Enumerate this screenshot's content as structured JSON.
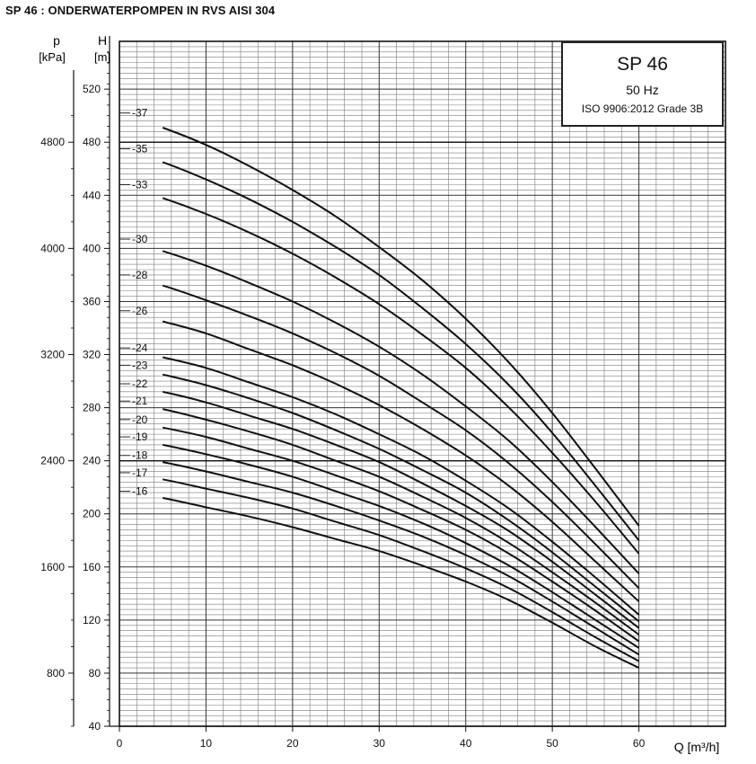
{
  "title": "SP 46 : ONDERWATERPOMPEN IN RVS AISI 304",
  "info_box": {
    "model": "SP 46",
    "frequency": "50 Hz",
    "standard": "ISO 9906:2012 Grade 3B"
  },
  "chart_data": {
    "type": "line",
    "xlabel": "Q [m³/h]",
    "ylabel_left_outer": {
      "symbol": "p",
      "unit": "[kPa]"
    },
    "ylabel_left_inner": {
      "symbol": "H",
      "unit": "[m]"
    },
    "xlim": [
      0,
      70
    ],
    "ylim": [
      40,
      556
    ],
    "x_ticks": [
      0,
      10,
      20,
      30,
      40,
      50,
      60
    ],
    "y_ticks_H": [
      40,
      80,
      120,
      160,
      200,
      240,
      280,
      320,
      360,
      400,
      440,
      480,
      520
    ],
    "y_ticks_p": [
      800,
      1600,
      2400,
      3200,
      4000,
      4800
    ],
    "grid": true,
    "x": [
      0,
      5,
      10,
      15,
      20,
      25,
      30,
      35,
      40,
      45,
      50,
      55,
      60
    ],
    "series": [
      {
        "name": "-16",
        "values": [
          217,
          212,
          205,
          198,
          190,
          181,
          172,
          161,
          149,
          135,
          118,
          100,
          84
        ]
      },
      {
        "name": "-17",
        "values": [
          231,
          226,
          219,
          212,
          204,
          194,
          184,
          172,
          159,
          144,
          126,
          107,
          89
        ]
      },
      {
        "name": "-18",
        "values": [
          244,
          239,
          232,
          224,
          216,
          206,
          195,
          183,
          169,
          153,
          134,
          114,
          94
        ]
      },
      {
        "name": "-19",
        "values": [
          258,
          252,
          245,
          237,
          228,
          217,
          206,
          193,
          178,
          161,
          141,
          120,
          99
        ]
      },
      {
        "name": "-20",
        "values": [
          271,
          265,
          258,
          249,
          240,
          229,
          217,
          203,
          188,
          170,
          149,
          127,
          104
        ]
      },
      {
        "name": "-21",
        "values": [
          285,
          279,
          271,
          262,
          252,
          240,
          228,
          213,
          197,
          178,
          156,
          133,
          109
        ]
      },
      {
        "name": "-22",
        "values": [
          298,
          292,
          284,
          274,
          264,
          252,
          239,
          223,
          206,
          187,
          164,
          139,
          114
        ]
      },
      {
        "name": "-23",
        "values": [
          312,
          305,
          297,
          287,
          276,
          263,
          249,
          233,
          216,
          195,
          171,
          145,
          119
        ]
      },
      {
        "name": "-24",
        "values": [
          325,
          318,
          310,
          299,
          288,
          275,
          260,
          244,
          225,
          204,
          179,
          152,
          124
        ]
      },
      {
        "name": "-26",
        "values": [
          353,
          345,
          336,
          324,
          312,
          298,
          282,
          264,
          244,
          221,
          194,
          164,
          134
        ]
      },
      {
        "name": "-28",
        "values": [
          380,
          372,
          361,
          349,
          336,
          321,
          304,
          284,
          263,
          238,
          209,
          177,
          144
        ]
      },
      {
        "name": "-30",
        "values": [
          407,
          398,
          387,
          374,
          360,
          344,
          326,
          305,
          281,
          255,
          224,
          190,
          155
        ]
      },
      {
        "name": "-33",
        "values": [
          448,
          438,
          426,
          412,
          396,
          378,
          358,
          335,
          310,
          280,
          246,
          209,
          170
        ]
      },
      {
        "name": "-35",
        "values": [
          475,
          465,
          452,
          437,
          420,
          401,
          380,
          355,
          328,
          297,
          261,
          221,
          180
        ]
      },
      {
        "name": "-37",
        "values": [
          502,
          491,
          478,
          462,
          444,
          424,
          401,
          376,
          347,
          314,
          276,
          234,
          191
        ]
      }
    ]
  }
}
